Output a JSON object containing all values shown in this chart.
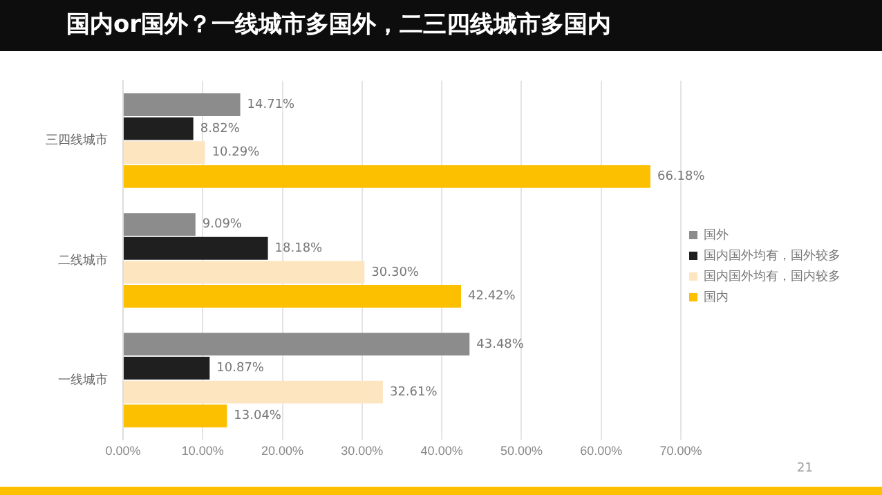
{
  "chart_data": {
    "type": "bar",
    "orientation": "horizontal",
    "title": "国内or国外？一线城市多国外，二三四线城市多国内",
    "categories": [
      "三四线城市",
      "二线城市",
      "一线城市"
    ],
    "series": [
      {
        "name": "国外",
        "color": "#8c8c8c",
        "values": [
          14.71,
          9.09,
          43.48
        ],
        "value_labels": [
          "14.71%",
          "9.09%",
          "43.48%"
        ]
      },
      {
        "name": "国内国外均有，国外较多",
        "color": "#1f1f1f",
        "values": [
          8.82,
          18.18,
          10.87
        ],
        "value_labels": [
          "8.82%",
          "18.18%",
          "10.87%"
        ]
      },
      {
        "name": "国内国外均有，国内较多",
        "color": "#fde5c0",
        "values": [
          10.29,
          30.3,
          32.61
        ],
        "value_labels": [
          "10.29%",
          "30.30%",
          "32.61%"
        ]
      },
      {
        "name": "国内",
        "color": "#fcc000",
        "values": [
          66.18,
          42.42,
          13.04
        ],
        "value_labels": [
          "66.18%",
          "42.42%",
          "13.04%"
        ]
      }
    ],
    "xlim": [
      0,
      70
    ],
    "xticks": [
      {
        "value": 0,
        "label": "0.00%"
      },
      {
        "value": 10,
        "label": "10.00%"
      },
      {
        "value": 20,
        "label": "20.00%"
      },
      {
        "value": 30,
        "label": "30.00%"
      },
      {
        "value": 40,
        "label": "40.00%"
      },
      {
        "value": 50,
        "label": "50.00%"
      },
      {
        "value": 60,
        "label": "60.00%"
      },
      {
        "value": 70,
        "label": "70.00%"
      }
    ],
    "grid": "x",
    "legend": "right",
    "annotations": [
      "21"
    ]
  }
}
